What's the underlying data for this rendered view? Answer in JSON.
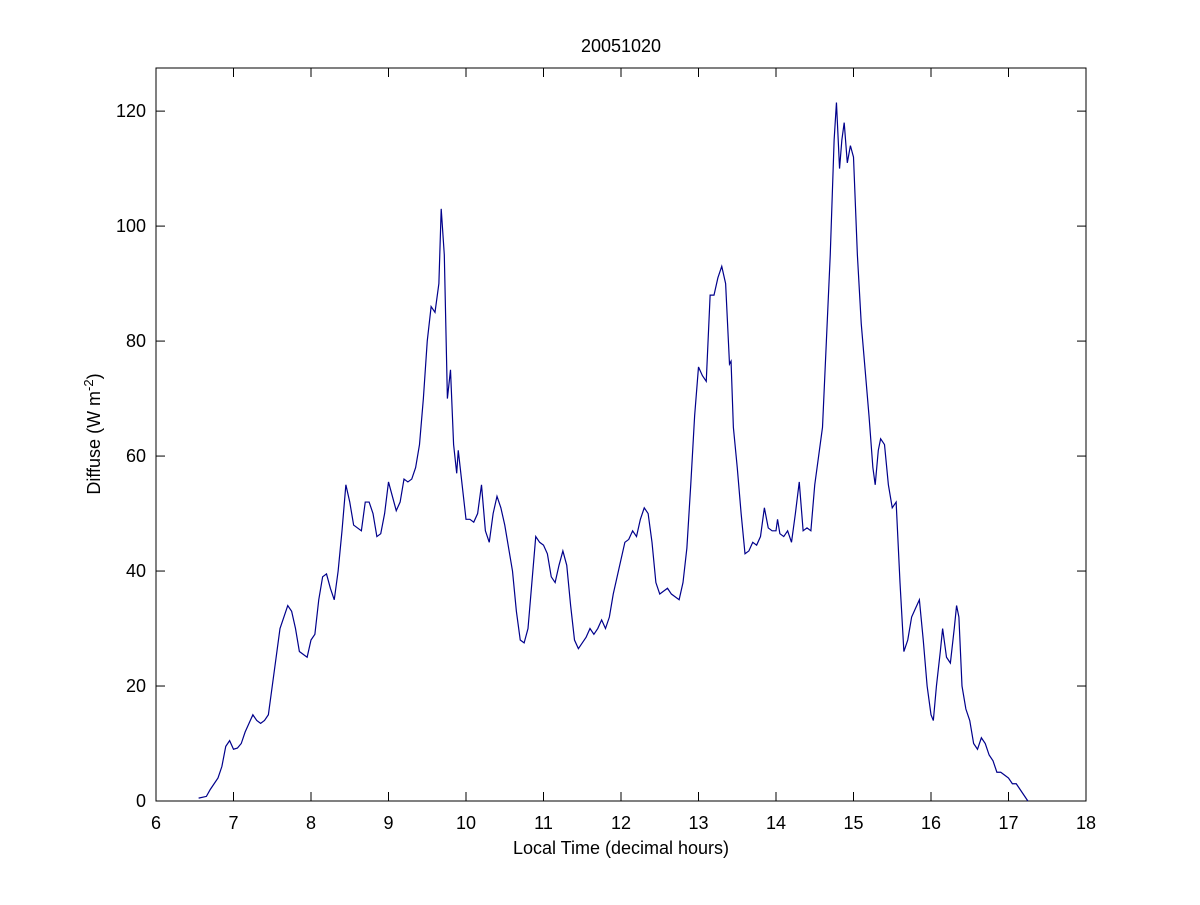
{
  "chart_data": {
    "type": "line",
    "title": "20051020",
    "xlabel": "Local Time (decimal hours)",
    "ylabel": [
      "Diffuse (W m",
      "-2",
      ")"
    ],
    "color": "#00008b",
    "xlim": [
      6,
      18
    ],
    "xticks": [
      6,
      7,
      8,
      9,
      10,
      11,
      12,
      13,
      14,
      15,
      16,
      17,
      18
    ],
    "ylim": [
      0,
      127.5
    ],
    "yticks": [
      0,
      20,
      40,
      60,
      80,
      100,
      120
    ],
    "grid": false,
    "x": [
      6.55,
      6.65,
      6.7,
      6.8,
      6.85,
      6.9,
      6.95,
      7.0,
      7.05,
      7.1,
      7.15,
      7.2,
      7.25,
      7.3,
      7.35,
      7.4,
      7.45,
      7.5,
      7.55,
      7.6,
      7.65,
      7.7,
      7.75,
      7.8,
      7.85,
      7.9,
      7.95,
      8.0,
      8.05,
      8.1,
      8.15,
      8.2,
      8.25,
      8.3,
      8.35,
      8.4,
      8.45,
      8.5,
      8.55,
      8.6,
      8.65,
      8.7,
      8.75,
      8.8,
      8.85,
      8.9,
      8.95,
      9.0,
      9.05,
      9.1,
      9.15,
      9.2,
      9.25,
      9.3,
      9.35,
      9.4,
      9.45,
      9.5,
      9.55,
      9.6,
      9.65,
      9.68,
      9.72,
      9.76,
      9.8,
      9.84,
      9.88,
      9.9,
      9.95,
      10.0,
      10.05,
      10.1,
      10.15,
      10.2,
      10.25,
      10.3,
      10.35,
      10.4,
      10.45,
      10.5,
      10.55,
      10.6,
      10.65,
      10.7,
      10.75,
      10.8,
      10.85,
      10.9,
      10.95,
      11.0,
      11.05,
      11.1,
      11.15,
      11.2,
      11.25,
      11.3,
      11.35,
      11.4,
      11.45,
      11.5,
      11.55,
      11.6,
      11.65,
      11.7,
      11.75,
      11.8,
      11.85,
      11.9,
      11.95,
      12.0,
      12.05,
      12.1,
      12.15,
      12.2,
      12.25,
      12.3,
      12.35,
      12.4,
      12.45,
      12.5,
      12.55,
      12.6,
      12.65,
      12.7,
      12.75,
      12.8,
      12.85,
      12.9,
      12.95,
      13.0,
      13.05,
      13.1,
      13.15,
      13.2,
      13.25,
      13.3,
      13.35,
      13.4,
      13.42,
      13.45,
      13.5,
      13.55,
      13.6,
      13.65,
      13.7,
      13.75,
      13.8,
      13.85,
      13.9,
      13.95,
      14.0,
      14.02,
      14.05,
      14.1,
      14.15,
      14.2,
      14.25,
      14.3,
      14.35,
      14.4,
      14.45,
      14.5,
      14.55,
      14.6,
      14.65,
      14.7,
      14.75,
      14.78,
      14.82,
      14.85,
      14.88,
      14.92,
      14.96,
      15.0,
      15.05,
      15.1,
      15.15,
      15.2,
      15.25,
      15.28,
      15.32,
      15.35,
      15.4,
      15.45,
      15.5,
      15.55,
      15.6,
      15.65,
      15.7,
      15.75,
      15.8,
      15.85,
      15.9,
      15.95,
      16.0,
      16.03,
      16.07,
      16.12,
      16.15,
      16.2,
      16.25,
      16.3,
      16.33,
      16.36,
      16.4,
      16.45,
      16.5,
      16.55,
      16.6,
      16.65,
      16.7,
      16.75,
      16.8,
      16.85,
      16.9,
      16.95,
      17.0,
      17.05,
      17.1,
      17.15,
      17.2,
      17.25
    ],
    "values": [
      0.5,
      0.8,
      2,
      4,
      6,
      9.5,
      10.5,
      9,
      9.2,
      10,
      12,
      13.5,
      15,
      14,
      13.5,
      14,
      15,
      20,
      25,
      30,
      32,
      34,
      33,
      30,
      26,
      25.5,
      25,
      28,
      29,
      35,
      39,
      39.5,
      37,
      35,
      40,
      47,
      55,
      52,
      48,
      47.5,
      47,
      52,
      52,
      50,
      46,
      46.5,
      50,
      55.5,
      53,
      50.5,
      52,
      56,
      55.5,
      56,
      58,
      62,
      70,
      80,
      86,
      85,
      90,
      103,
      95,
      70,
      75,
      62,
      57,
      61,
      55,
      49,
      49,
      48.5,
      50,
      55,
      47,
      45,
      50,
      53,
      51,
      48,
      44,
      40,
      33,
      28,
      27.5,
      30,
      38,
      46,
      45,
      44.5,
      43,
      39,
      38,
      41,
      43.5,
      41,
      34,
      28,
      26.5,
      27.5,
      28.5,
      30,
      29,
      30,
      31.5,
      30,
      32,
      36,
      39,
      42,
      45,
      45.5,
      47,
      46,
      49,
      51,
      50,
      45,
      38,
      36,
      36.5,
      37,
      36,
      35.5,
      35,
      38,
      44,
      55,
      67,
      75.5,
      74,
      73,
      88,
      88,
      91,
      93,
      90,
      76,
      76.5,
      65,
      58,
      50,
      43,
      43.5,
      45,
      44.5,
      46,
      51,
      47.5,
      47,
      47,
      49,
      46.5,
      46,
      47,
      45,
      50,
      55.5,
      47,
      47.5,
      47,
      55,
      60,
      65,
      80,
      95,
      115,
      121.5,
      110,
      115,
      118,
      111,
      114,
      112,
      95,
      83,
      75,
      67,
      58,
      55,
      61,
      63,
      62,
      55,
      51,
      52,
      38,
      26,
      28,
      32,
      33.5,
      35,
      28,
      20,
      15,
      14,
      20,
      26,
      30,
      25,
      24,
      30,
      34,
      32,
      20,
      16,
      14,
      10,
      9,
      11,
      10,
      8,
      7,
      5,
      5,
      4.5,
      4,
      3,
      3,
      2,
      1,
      0
    ]
  }
}
